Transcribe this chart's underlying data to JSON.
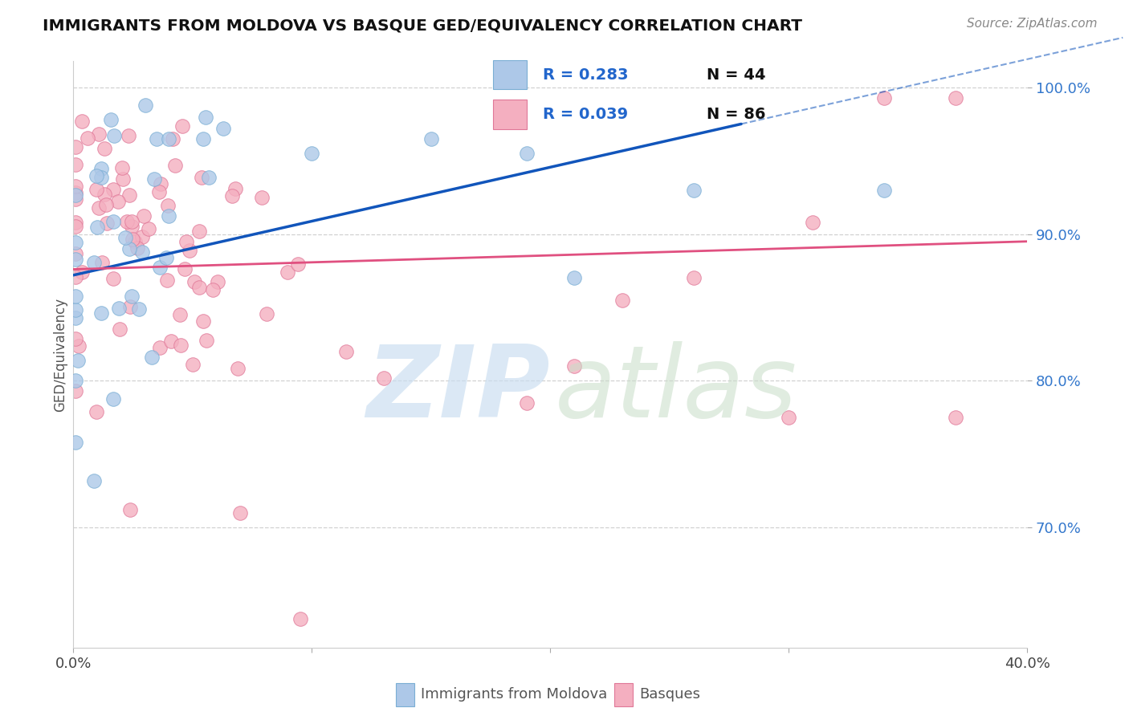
{
  "title": "IMMIGRANTS FROM MOLDOVA VS BASQUE GED/EQUIVALENCY CORRELATION CHART",
  "source": "Source: ZipAtlas.com",
  "ylabel": "GED/Equivalency",
  "x_min": 0.0,
  "x_max": 0.4,
  "y_min": 0.618,
  "y_max": 1.018,
  "y_ticks": [
    0.7,
    0.8,
    0.9,
    1.0
  ],
  "y_tick_labels": [
    "70.0%",
    "80.0%",
    "90.0%",
    "100.0%"
  ],
  "x_ticks": [
    0.0,
    0.1,
    0.2,
    0.3,
    0.4
  ],
  "x_tick_labels": [
    "0.0%",
    "",
    "",
    "",
    "40.0%"
  ],
  "blue_color": "#adc8e8",
  "blue_edge_color": "#7aaed4",
  "pink_color": "#f4afc0",
  "pink_edge_color": "#e07898",
  "blue_line_color": "#1155bb",
  "pink_line_color": "#e05080",
  "legend_blue_r": "R = 0.283",
  "legend_blue_n": "N = 44",
  "legend_pink_r": "R = 0.039",
  "legend_pink_n": "N = 86",
  "bottom_label1": "Immigrants from Moldova",
  "bottom_label2": "Basques",
  "watermark_zip_color": "#c8ddf0",
  "watermark_atlas_color": "#c8ddc8",
  "marker_size": 160,
  "blue_N": 44,
  "pink_N": 86,
  "blue_R": 0.283,
  "pink_R": 0.039,
  "blue_seed": 42,
  "pink_seed": 99
}
